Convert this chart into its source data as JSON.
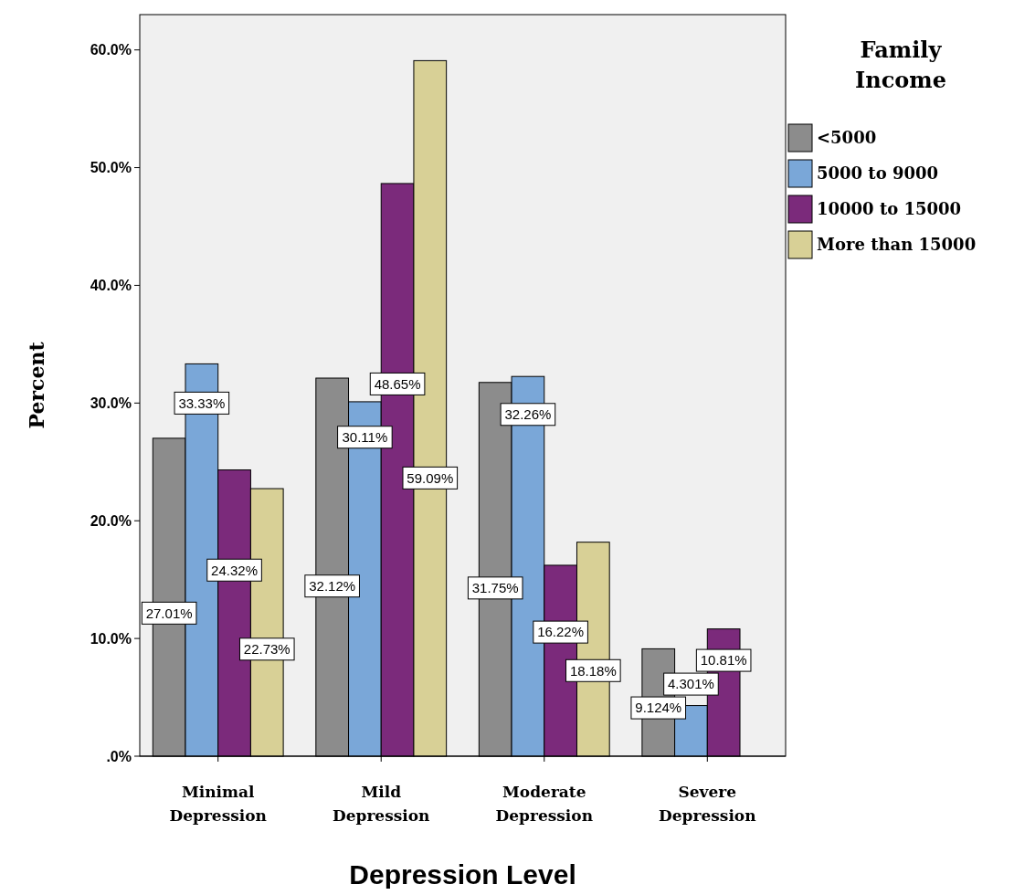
{
  "chart_data": {
    "type": "bar",
    "xlabel": "Depression Level",
    "ylabel": "Percent",
    "legend_title": "Family Income",
    "legend": "top right",
    "grid": false,
    "categories": [
      "Minimal Depression",
      "Mild Depression",
      "Moderate Depression",
      "Severe Depression"
    ],
    "ylim": [
      0,
      63
    ],
    "yticks": [
      {
        "value": 0,
        "label": ".0%"
      },
      {
        "value": 10,
        "label": "10.0%"
      },
      {
        "value": 20,
        "label": "20.0%"
      },
      {
        "value": 30,
        "label": "30.0%"
      },
      {
        "value": 40,
        "label": "40.0%"
      },
      {
        "value": 50,
        "label": "50.0%"
      },
      {
        "value": 60,
        "label": "60.0%"
      }
    ],
    "series": [
      {
        "name": "<5000",
        "color": "#8c8c8c",
        "values": [
          27.01,
          32.12,
          31.75,
          9.124
        ],
        "value_labels": [
          "27.01%",
          "32.12%",
          "31.75%",
          "9.124%"
        ]
      },
      {
        "name": "5000 to 9000",
        "color": "#7aa7d8",
        "values": [
          33.33,
          30.11,
          32.26,
          4.301
        ],
        "value_labels": [
          "33.33%",
          "30.11%",
          "32.26%",
          "4.301%"
        ]
      },
      {
        "name": "10000 to 15000",
        "color": "#7b2a7b",
        "values": [
          24.32,
          48.65,
          16.22,
          10.81
        ],
        "value_labels": [
          "24.32%",
          "48.65%",
          "16.22%",
          "10.81%"
        ]
      },
      {
        "name": "More than 15000",
        "color": "#d8d096",
        "values": [
          22.73,
          59.09,
          18.18,
          0
        ],
        "value_labels": [
          "22.73%",
          "59.09%",
          "18.18%",
          null
        ]
      }
    ]
  }
}
